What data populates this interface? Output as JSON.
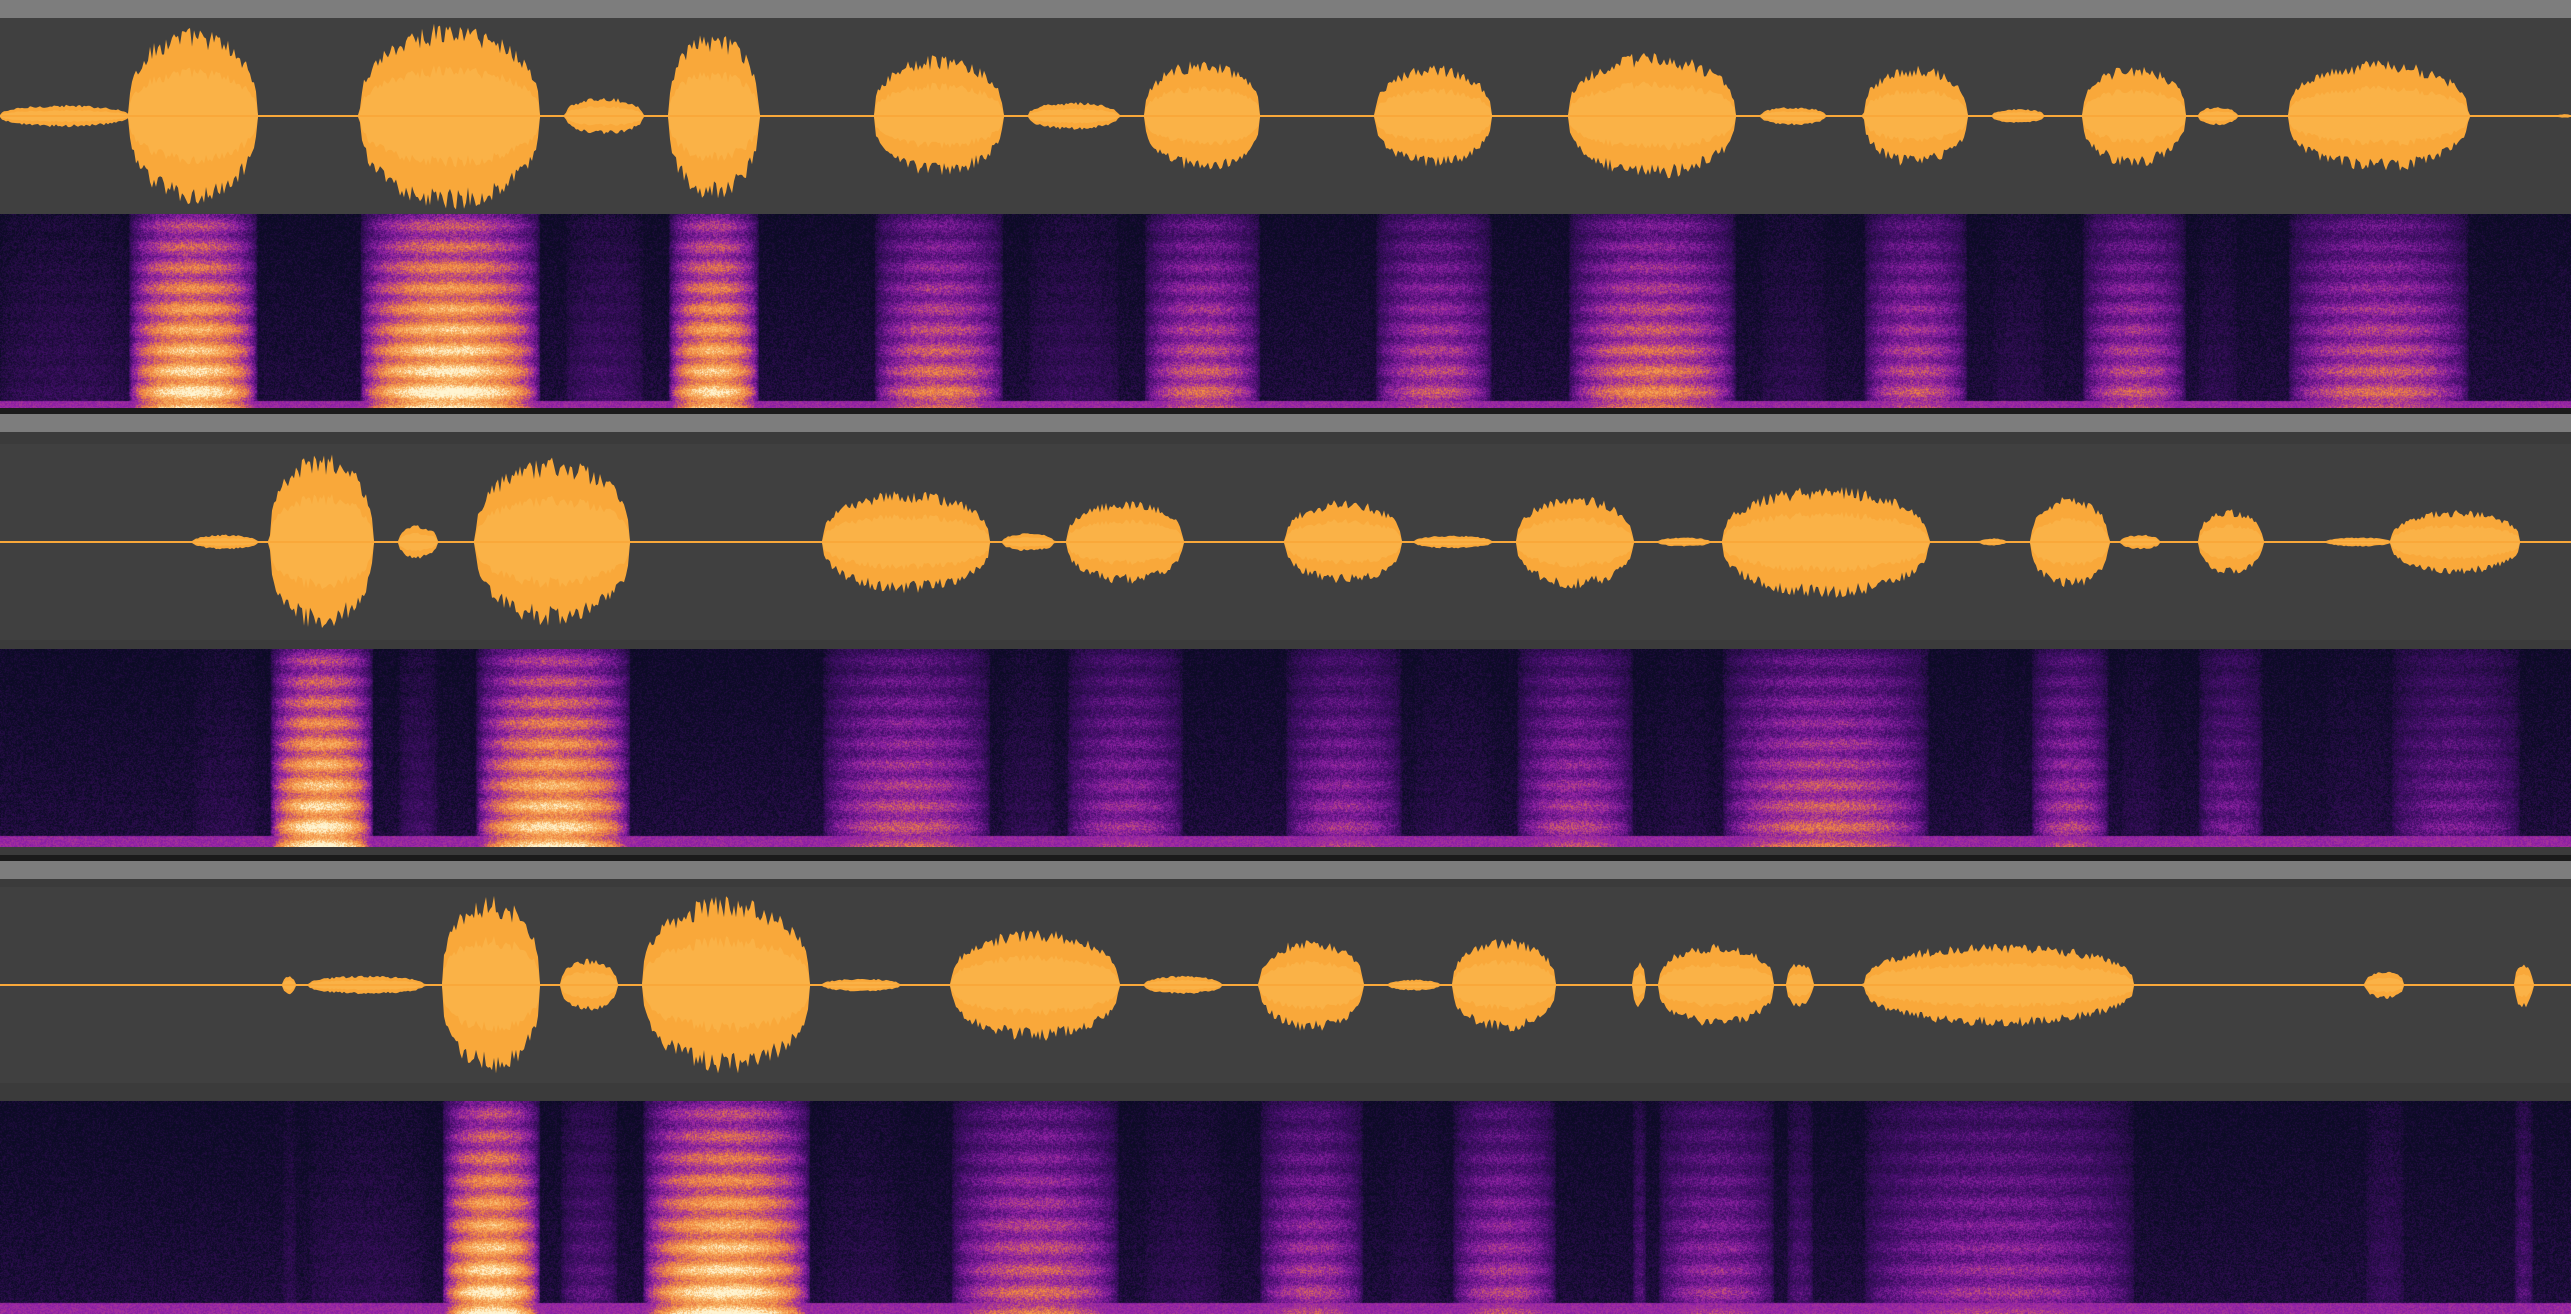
{
  "colors": {
    "background": "#404040",
    "track_header": "#7d7d7d",
    "separator": "#1b1b1b",
    "waveform_fill": "#f9a83a",
    "waveform_inner": "#fab247",
    "spectrogram_low": "#0b0b24",
    "spectrogram_mid": "#8a1fb0",
    "spectrogram_high": "#f08a3c",
    "spectrogram_peak": "#fff4d0"
  },
  "tracks": [
    {
      "name": "",
      "segments": [
        [
          0.0,
          0.05,
          0.12
        ],
        [
          0.05,
          0.1,
          0.95
        ],
        [
          0.14,
          0.21,
          1.0
        ],
        [
          0.22,
          0.25,
          0.2
        ],
        [
          0.26,
          0.295,
          0.9
        ],
        [
          0.34,
          0.39,
          0.65
        ],
        [
          0.4,
          0.435,
          0.15
        ],
        [
          0.445,
          0.49,
          0.6
        ],
        [
          0.535,
          0.58,
          0.55
        ],
        [
          0.61,
          0.675,
          0.68
        ],
        [
          0.685,
          0.71,
          0.1
        ],
        [
          0.725,
          0.765,
          0.55
        ],
        [
          0.775,
          0.795,
          0.08
        ],
        [
          0.81,
          0.85,
          0.55
        ],
        [
          0.855,
          0.87,
          0.1
        ],
        [
          0.89,
          0.96,
          0.6
        ],
        [
          0.995,
          1.0,
          0.02
        ]
      ]
    },
    {
      "name": "",
      "segments": [
        [
          0.075,
          0.1,
          0.08
        ],
        [
          0.105,
          0.145,
          0.95
        ],
        [
          0.155,
          0.17,
          0.18
        ],
        [
          0.185,
          0.245,
          0.9
        ],
        [
          0.32,
          0.385,
          0.55
        ],
        [
          0.39,
          0.41,
          0.1
        ],
        [
          0.415,
          0.46,
          0.45
        ],
        [
          0.5,
          0.545,
          0.45
        ],
        [
          0.55,
          0.58,
          0.07
        ],
        [
          0.59,
          0.635,
          0.5
        ],
        [
          0.645,
          0.665,
          0.05
        ],
        [
          0.67,
          0.75,
          0.6
        ],
        [
          0.77,
          0.78,
          0.04
        ],
        [
          0.79,
          0.82,
          0.5
        ],
        [
          0.825,
          0.84,
          0.08
        ],
        [
          0.855,
          0.88,
          0.35
        ],
        [
          0.905,
          0.93,
          0.05
        ],
        [
          0.93,
          0.98,
          0.35
        ]
      ]
    },
    {
      "name": "",
      "segments": [
        [
          0.11,
          0.115,
          0.1
        ],
        [
          0.12,
          0.165,
          0.1
        ],
        [
          0.172,
          0.21,
          0.95
        ],
        [
          0.218,
          0.24,
          0.28
        ],
        [
          0.25,
          0.315,
          0.95
        ],
        [
          0.32,
          0.35,
          0.07
        ],
        [
          0.37,
          0.435,
          0.6
        ],
        [
          0.445,
          0.475,
          0.1
        ],
        [
          0.49,
          0.53,
          0.5
        ],
        [
          0.54,
          0.56,
          0.06
        ],
        [
          0.565,
          0.605,
          0.5
        ],
        [
          0.635,
          0.64,
          0.25
        ],
        [
          0.645,
          0.69,
          0.45
        ],
        [
          0.695,
          0.705,
          0.25
        ],
        [
          0.725,
          0.83,
          0.45
        ],
        [
          0.92,
          0.935,
          0.15
        ],
        [
          0.978,
          0.985,
          0.25
        ]
      ]
    }
  ]
}
